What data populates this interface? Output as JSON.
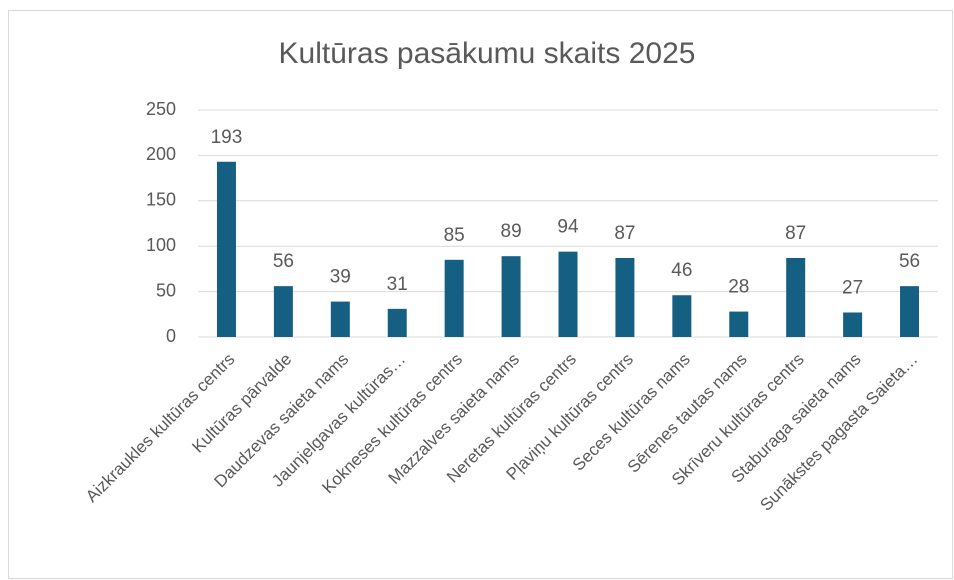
{
  "chart_data": {
    "type": "bar",
    "title": "Kultūras pasākumu skaits 2025",
    "categories": [
      "Aizkraukles kultūras centrs",
      "Kultūras pārvalde",
      "Daudzevas saieta nams",
      "Jaunjelgavas kultūras…",
      "Kokneses kultūras centrs",
      "Mazzalves saieta nams",
      "Neretas kultūras centrs",
      "Pļaviņu kultūras centrs",
      "Seces kultūras nams",
      "Sērenes tautas nams",
      "Skrīveru kultūras centrs",
      "Staburaga saieta nams",
      "Sunākstes pagasta Saieta…"
    ],
    "values": [
      193,
      56,
      39,
      31,
      85,
      89,
      94,
      87,
      46,
      28,
      87,
      27,
      56
    ],
    "color": "#156082",
    "ylim": [
      0,
      250
    ],
    "yticks": [
      0,
      50,
      100,
      150,
      200,
      250
    ],
    "grid": true
  }
}
